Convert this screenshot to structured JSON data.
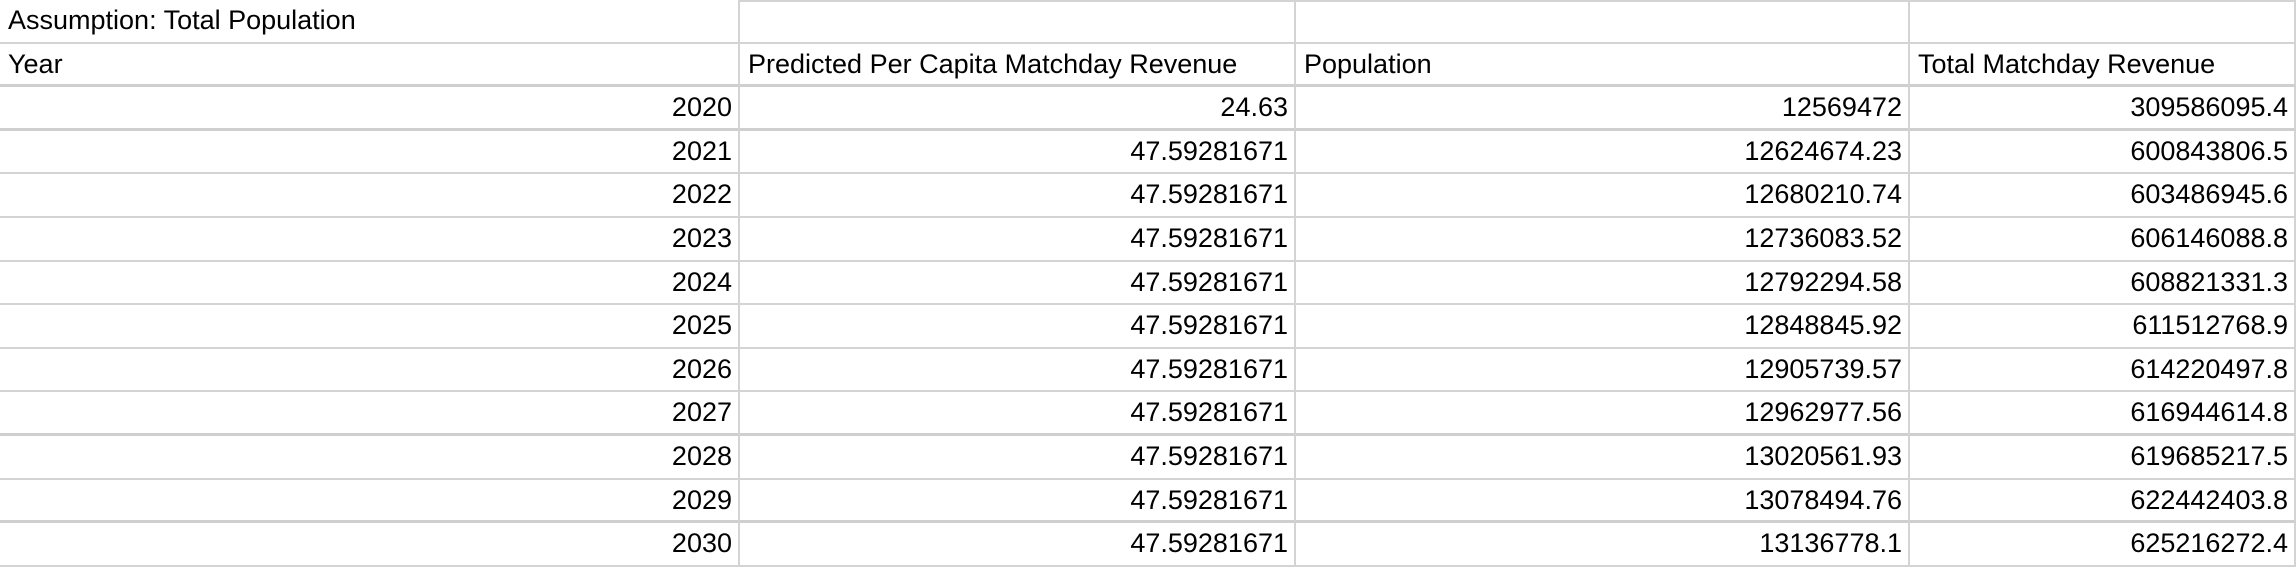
{
  "assumption_label": "Assumption: Total Population",
  "headers": [
    "Year",
    "Predicted Per Capita Matchday Revenue",
    "Population",
    "Total Matchday Revenue"
  ],
  "rows": [
    [
      "2020",
      "24.63",
      "12569472",
      "309586095.4"
    ],
    [
      "2021",
      "47.59281671",
      "12624674.23",
      "600843806.5"
    ],
    [
      "2022",
      "47.59281671",
      "12680210.74",
      "603486945.6"
    ],
    [
      "2023",
      "47.59281671",
      "12736083.52",
      "606146088.8"
    ],
    [
      "2024",
      "47.59281671",
      "12792294.58",
      "608821331.3"
    ],
    [
      "2025",
      "47.59281671",
      "12848845.92",
      "611512768.9"
    ],
    [
      "2026",
      "47.59281671",
      "12905739.57",
      "614220497.8"
    ],
    [
      "2027",
      "47.59281671",
      "12962977.56",
      "616944614.8"
    ],
    [
      "2028",
      "47.59281671",
      "13020561.93",
      "619685217.5"
    ],
    [
      "2029",
      "47.59281671",
      "13078494.76",
      "622442403.8"
    ],
    [
      "2030",
      "47.59281671",
      "13136778.1",
      "625216272.4"
    ]
  ]
}
